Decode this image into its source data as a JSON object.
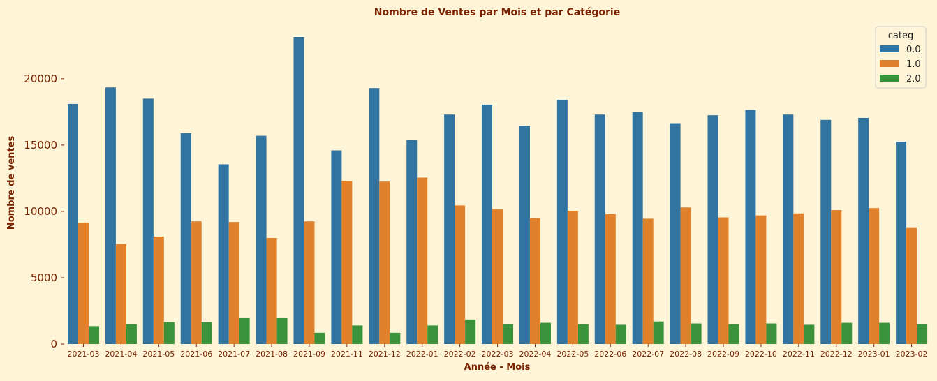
{
  "chart_data": {
    "type": "bar",
    "title": "Nombre de Ventes par Mois et par Catégorie",
    "xlabel": "Année - Mois",
    "ylabel": "Nombre de ventes",
    "ylim": [
      0,
      24500
    ],
    "yticks": [
      0,
      5000,
      10000,
      15000,
      20000
    ],
    "grid": false,
    "legend": {
      "title": "categ",
      "placement": "top-right"
    },
    "categories": [
      "2021-03",
      "2021-04",
      "2021-05",
      "2021-06",
      "2021-07",
      "2021-08",
      "2021-09",
      "2021-11",
      "2021-12",
      "2022-01",
      "2022-02",
      "2022-03",
      "2022-04",
      "2022-05",
      "2022-06",
      "2022-07",
      "2022-08",
      "2022-09",
      "2022-10",
      "2022-11",
      "2022-12",
      "2023-01",
      "2023-02"
    ],
    "series": [
      {
        "name": "0.0",
        "color": "#3274a1",
        "values": [
          18100,
          19350,
          18500,
          15900,
          13550,
          15700,
          23150,
          14600,
          19300,
          15400,
          17300,
          18050,
          16450,
          18400,
          17300,
          17500,
          16650,
          17250,
          17650,
          17300,
          16900,
          17050,
          15250
        ]
      },
      {
        "name": "1.0",
        "color": "#e1812c",
        "values": [
          9150,
          7550,
          8100,
          9250,
          9200,
          8000,
          9250,
          12300,
          12250,
          12550,
          10450,
          10150,
          9500,
          10050,
          9800,
          9450,
          10300,
          9550,
          9700,
          9850,
          10100,
          10250,
          8750
        ]
      },
      {
        "name": "2.0",
        "color": "#3a923a",
        "values": [
          1350,
          1500,
          1650,
          1650,
          1950,
          1950,
          850,
          1400,
          850,
          1400,
          1850,
          1500,
          1600,
          1500,
          1450,
          1700,
          1550,
          1500,
          1550,
          1450,
          1600,
          1600,
          1500
        ]
      }
    ]
  }
}
